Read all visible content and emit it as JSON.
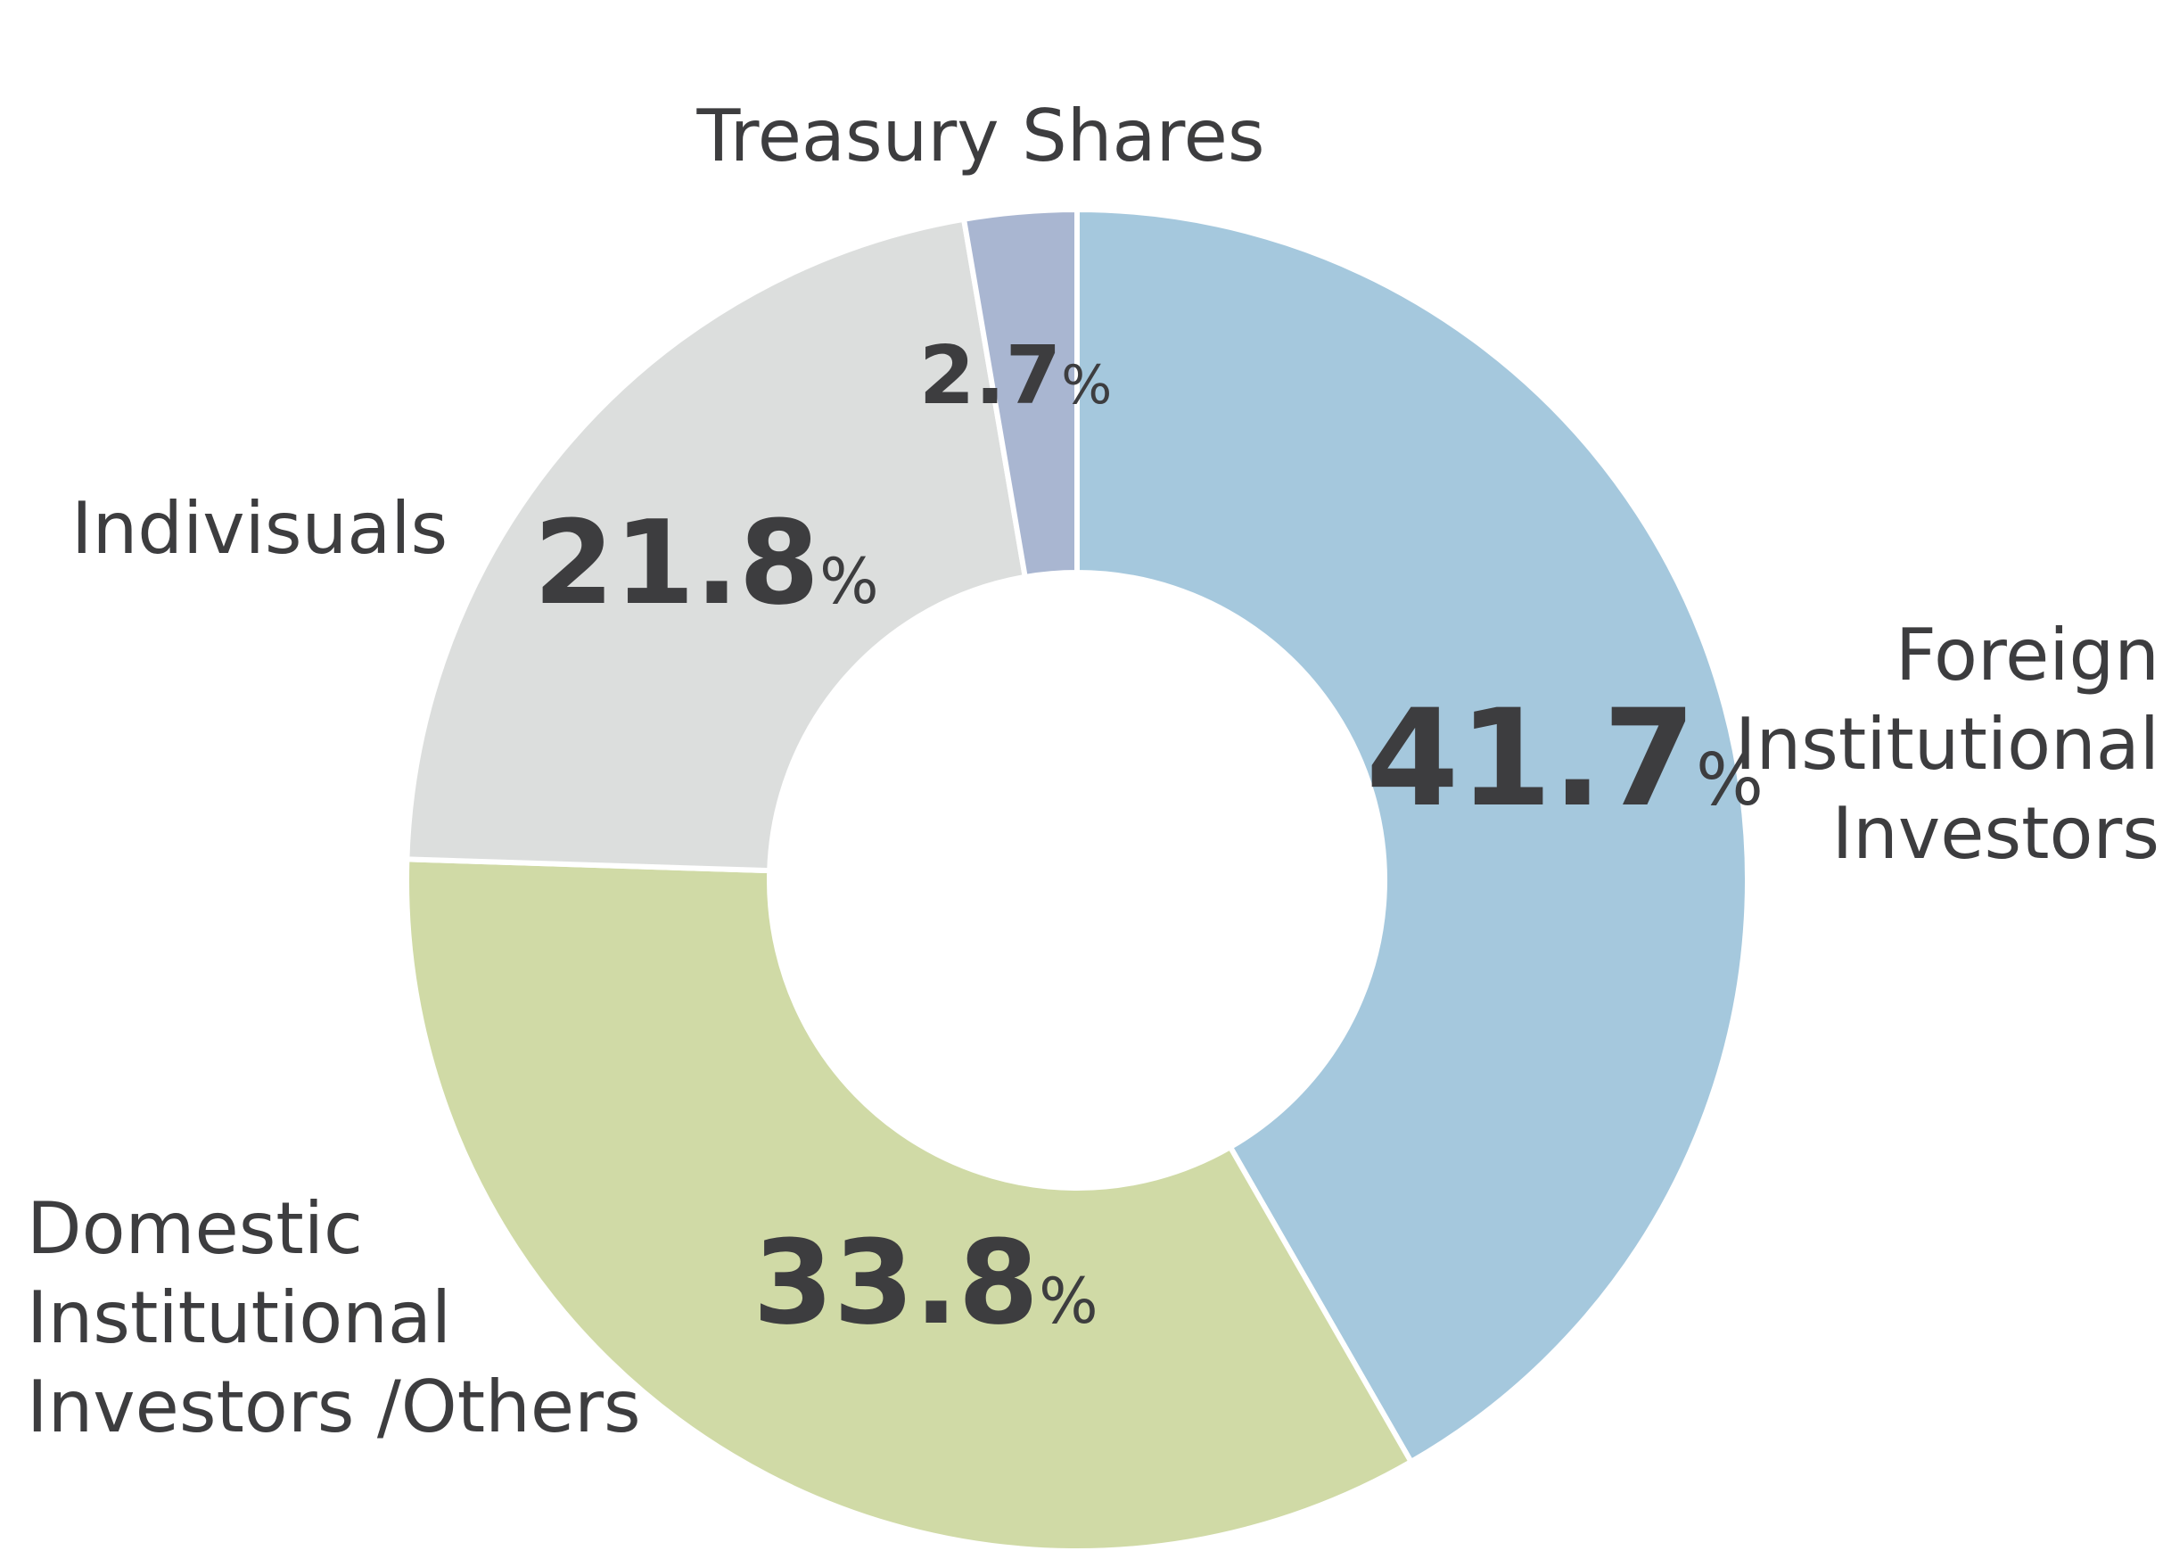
{
  "chart_data": {
    "type": "pie",
    "variant": "donut",
    "slices": [
      {
        "label_lines": [
          "Foreign",
          "Institutional",
          "Investors"
        ],
        "value": 41.7,
        "value_text": "41.7",
        "color": "#a5c8dd"
      },
      {
        "label_lines": [
          "Domestic",
          "Institutional",
          "Investors /Others"
        ],
        "value": 33.8,
        "value_text": "33.8",
        "color": "#d0daa6"
      },
      {
        "label_lines": [
          "Indivisuals"
        ],
        "value": 21.8,
        "value_text": "21.8",
        "color": "#dcdedd"
      },
      {
        "label_lines": [
          "Treasury Shares"
        ],
        "value": 2.7,
        "value_text": "2.7",
        "color": "#a9b6d1"
      }
    ],
    "unit": "%",
    "start": "12 o'clock",
    "direction": "clockwise",
    "separator_color": "#ffffff",
    "text_color": "#3d3d3f"
  }
}
